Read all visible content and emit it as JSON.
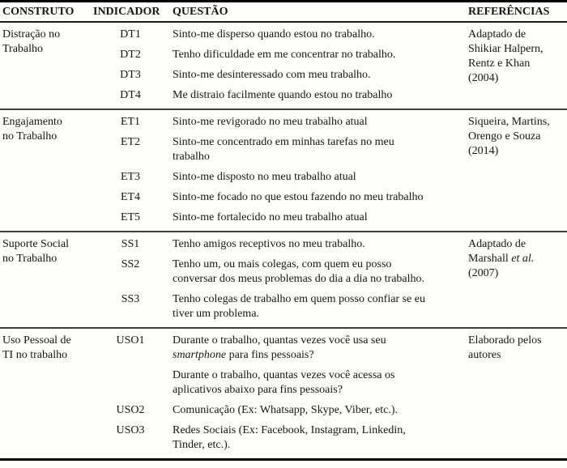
{
  "table": {
    "headers": {
      "construto": "CONSTRUTO",
      "indicador": "INDICADOR",
      "questao": "QUESTÃO",
      "referencias": "REFERÊNCIAS"
    },
    "sections": [
      {
        "construto": "Distração no\nTrabalho",
        "ref": {
          "pre": "Adaptado de\nShikiar Halpern,\nRentz e Khan\n(2004)",
          "it": "",
          "post": ""
        },
        "rows": [
          {
            "ind": "DT1",
            "q": {
              "pre": "Sinto-me disperso quando estou no trabalho.",
              "it": "",
              "post": ""
            }
          },
          {
            "ind": "DT2",
            "q": {
              "pre": "Tenho dificuldade em me concentrar no trabalho.",
              "it": "",
              "post": ""
            }
          },
          {
            "ind": "DT3",
            "q": {
              "pre": "Sinto-me desinteressado com meu trabalho.",
              "it": "",
              "post": ""
            }
          },
          {
            "ind": "DT4",
            "q": {
              "pre": "Me distraio facilmente quando estou no trabalho",
              "it": "",
              "post": ""
            }
          }
        ]
      },
      {
        "construto": "Engajamento\nno Trabalho",
        "ref": {
          "pre": "Siqueira, Martins,\nOrengo e Souza\n(2014)",
          "it": "",
          "post": ""
        },
        "rows": [
          {
            "ind": "ET1",
            "q": {
              "pre": "Sinto-me revigorado no meu trabalho atual",
              "it": "",
              "post": ""
            }
          },
          {
            "ind": "ET2",
            "q": {
              "pre": "Sinto-me concentrado em minhas tarefas no meu\ntrabalho",
              "it": "",
              "post": ""
            }
          },
          {
            "ind": "ET3",
            "q": {
              "pre": "Sinto-me disposto no meu trabalho atual",
              "it": "",
              "post": ""
            }
          },
          {
            "ind": "ET4",
            "q": {
              "pre": "Sinto-me focado no que estou fazendo no meu trabalho",
              "it": "",
              "post": ""
            }
          },
          {
            "ind": "ET5",
            "q": {
              "pre": "Sinto-me fortalecido no meu trabalho atual",
              "it": "",
              "post": ""
            }
          }
        ]
      },
      {
        "construto": "Suporte Social\nno Trabalho",
        "ref": {
          "pre": "Adaptado de\nMarshall ",
          "it": "et al.",
          "post": "\n(2007)"
        },
        "rows": [
          {
            "ind": "SS1",
            "q": {
              "pre": "Tenho amigos receptivos no meu trabalho.",
              "it": "",
              "post": ""
            }
          },
          {
            "ind": "SS2",
            "q": {
              "pre": "Tenho um, ou mais colegas, com quem eu posso\nconversar dos meus problemas do dia a dia no trabalho.",
              "it": "",
              "post": ""
            }
          },
          {
            "ind": "SS3",
            "q": {
              "pre": "Tenho colegas de trabalho em quem posso confiar se eu\ntiver um problema.",
              "it": "",
              "post": ""
            }
          }
        ]
      },
      {
        "construto": "Uso Pessoal de\nTI no trabalho",
        "ref": {
          "pre": "Elaborado pelos\nautores",
          "it": "",
          "post": ""
        },
        "rows": [
          {
            "ind": "USO1",
            "q": {
              "pre": "Durante o trabalho, quantas vezes você usa seu\n",
              "it": "smartphone",
              "post": " para fins pessoais?"
            }
          },
          {
            "ind": "",
            "q": {
              "pre": "Durante o trabalho, quantas vezes você acessa os\naplicativos abaixo para fins pessoais?",
              "it": "",
              "post": ""
            }
          },
          {
            "ind": "USO2",
            "q": {
              "pre": "Comunicação (Ex: Whatsapp, Skype, Viber, etc.).",
              "it": "",
              "post": ""
            }
          },
          {
            "ind": "USO3",
            "q": {
              "pre": "Redes Sociais (Ex: Facebook, Instagram, Linkedin,\nTinder, etc.).",
              "it": "",
              "post": ""
            }
          }
        ]
      }
    ]
  }
}
